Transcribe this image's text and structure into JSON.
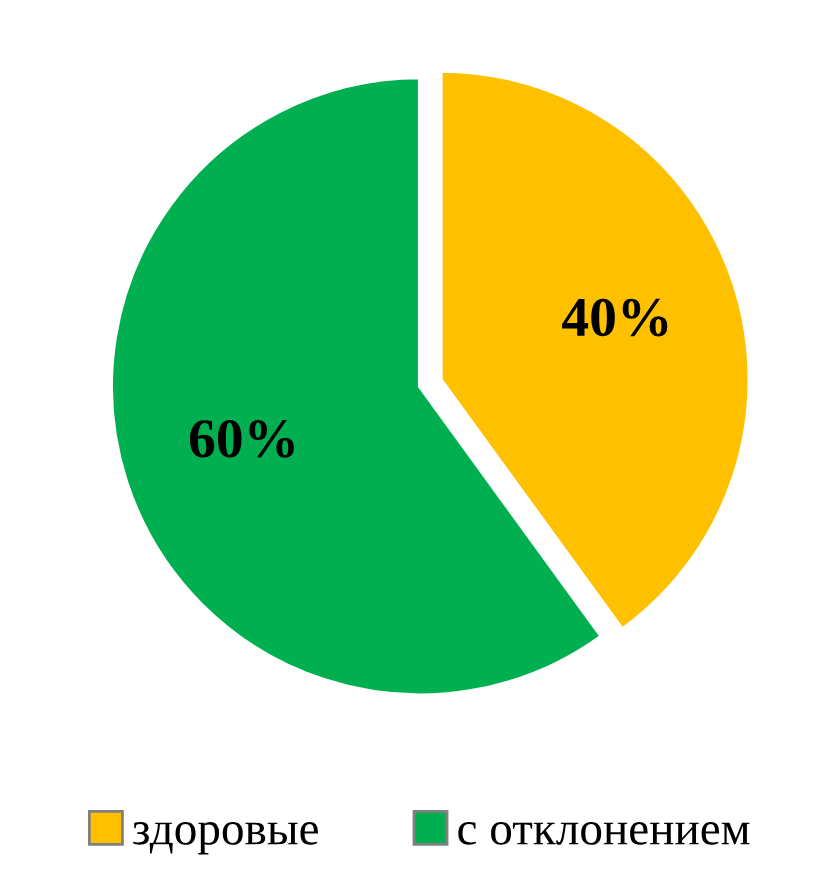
{
  "chart_data": {
    "type": "pie",
    "categories": [
      "здоровые",
      "с отклонением"
    ],
    "values": [
      40,
      60
    ],
    "colors": [
      "#ffc000",
      "#00b050"
    ],
    "value_labels": [
      "40%",
      "60%"
    ],
    "legend": "bottom"
  }
}
